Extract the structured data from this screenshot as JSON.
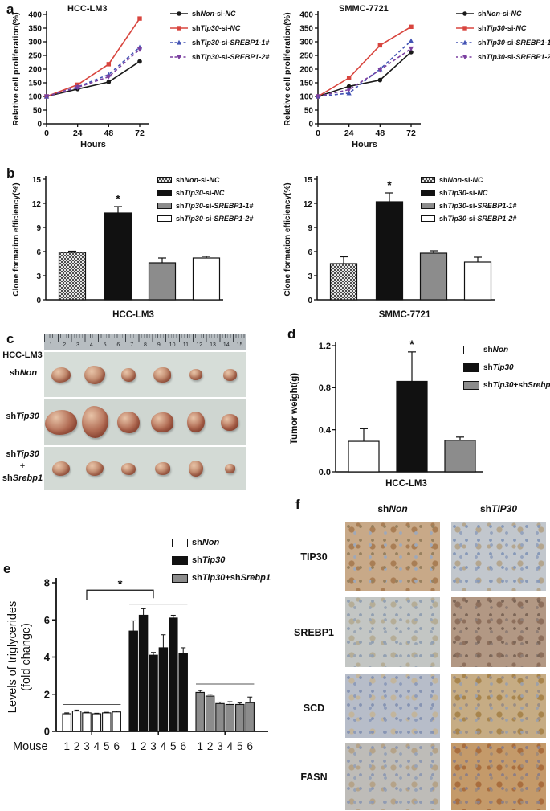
{
  "figure": {
    "panel_labels": {
      "a": "a",
      "b": "b",
      "c": "c",
      "d": "d",
      "e": "e",
      "f": "f"
    }
  },
  "italic_tokens": [
    "SREBP1-1#",
    "SREBP1-2#",
    "SREBP1",
    "Srebp1",
    "Tip30",
    "TIP30",
    "Non",
    "NC"
  ],
  "colors": {
    "black": "#1a1a1a",
    "red": "#d8453e",
    "blue": "#4353b4",
    "purple": "#7b3fa0",
    "gray_bar": "#8c8c8c",
    "axis": "#111111"
  },
  "legends": {
    "proliferation": [
      {
        "label": "shNon-si-NC",
        "color": "#1a1a1a",
        "marker": "circle",
        "dash": false
      },
      {
        "label": "shTip30-si-NC",
        "color": "#d8453e",
        "marker": "square",
        "dash": false
      },
      {
        "label": "shTip30-si-SREBP1-1#",
        "color": "#4353b4",
        "marker": "tri-up",
        "dash": true
      },
      {
        "label": "shTip30-si-SREBP1-2#",
        "color": "#7b3fa0",
        "marker": "tri-down",
        "dash": true
      }
    ],
    "clone": [
      {
        "label": "shNon-si-NC",
        "fill": "checker"
      },
      {
        "label": "shTip30-si-NC",
        "fill": "#111111"
      },
      {
        "label": "shTip30-si-SREBP1-1#",
        "fill": "#8c8c8c"
      },
      {
        "label": "shTip30-si-SREBP1-2#",
        "fill": "#ffffff"
      }
    ],
    "xeno": [
      {
        "label": "shNon",
        "fill": "#ffffff"
      },
      {
        "label": "shTip30",
        "fill": "#111111"
      },
      {
        "label": "shTip30+shSrebp1",
        "fill": "#8c8c8c"
      }
    ]
  },
  "chart_data": [
    {
      "id": "a1",
      "type": "line",
      "title": "HCC-LM3",
      "xlabel": "Hours",
      "ylabel": "Relative cell proliferation(%)",
      "ylim": [
        0,
        400
      ],
      "ytick_step": 50,
      "x": [
        0,
        24,
        48,
        72
      ],
      "series": [
        {
          "name": "shNon-si-NC",
          "values": [
            100,
            127,
            153,
            228
          ]
        },
        {
          "name": "shTip30-si-NC",
          "values": [
            100,
            143,
            218,
            385
          ]
        },
        {
          "name": "shTip30-si-SREBP1-1#",
          "values": [
            100,
            135,
            180,
            280
          ]
        },
        {
          "name": "shTip30-si-SREBP1-2#",
          "values": [
            100,
            133,
            172,
            272
          ]
        }
      ]
    },
    {
      "id": "a2",
      "type": "line",
      "title": "SMMC-7721",
      "xlabel": "Hours",
      "ylabel": "Relative cell proliferation(%)",
      "ylim": [
        0,
        400
      ],
      "ytick_step": 50,
      "x": [
        0,
        24,
        48,
        72
      ],
      "series": [
        {
          "name": "shNon-si-NC",
          "values": [
            100,
            137,
            160,
            262
          ]
        },
        {
          "name": "shTip30-si-NC",
          "values": [
            100,
            168,
            287,
            355
          ]
        },
        {
          "name": "shTip30-si-SREBP1-1#",
          "values": [
            100,
            112,
            200,
            303
          ]
        },
        {
          "name": "shTip30-si-SREBP1-2#",
          "values": [
            100,
            125,
            197,
            275
          ]
        }
      ]
    },
    {
      "id": "b1",
      "type": "bar",
      "xlabel": "HCC-LM3",
      "ylabel": "Clone formation efficiency(%)",
      "ylim": [
        0,
        15
      ],
      "ytick_step": 3,
      "categories": [
        "shNon-si-NC",
        "shTip30-si-NC",
        "shTip30-si-SREBP1-1#",
        "shTip30-si-SREBP1-2#"
      ],
      "values": [
        5.9,
        10.8,
        4.6,
        5.2
      ],
      "errors": [
        0.15,
        0.8,
        0.6,
        0.2
      ],
      "sig_index": 1,
      "sig_symbol": "*"
    },
    {
      "id": "b2",
      "type": "bar",
      "xlabel": "SMMC-7721",
      "ylabel": "Clone formation efficiency(%)",
      "ylim": [
        0,
        15
      ],
      "ytick_step": 3,
      "categories": [
        "shNon-si-NC",
        "shTip30-si-NC",
        "shTip30-si-SREBP1-1#",
        "shTip30-si-SREBP1-2#"
      ],
      "values": [
        4.5,
        12.2,
        5.8,
        4.7
      ],
      "errors": [
        0.85,
        1.1,
        0.3,
        0.6
      ],
      "sig_index": 1,
      "sig_symbol": "*"
    },
    {
      "id": "d",
      "type": "bar",
      "xlabel": "HCC-LM3",
      "ylabel": "Tumor weight(g)",
      "ylim": [
        0,
        1.2
      ],
      "yticks": [
        "0.0",
        "0.4",
        "0.8",
        "1.2"
      ],
      "categories": [
        "shNon",
        "shTip30",
        "shTip30+shSrebp1"
      ],
      "values": [
        0.29,
        0.86,
        0.3
      ],
      "errors": [
        0.12,
        0.28,
        0.03
      ],
      "sig_index": 1,
      "sig_symbol": "*"
    },
    {
      "id": "e",
      "type": "grouped-bar",
      "ylabel_lines": [
        "Levels of triglycerides",
        "(fold change)"
      ],
      "x_axis_label": "Mouse",
      "ylim": [
        0,
        8
      ],
      "ytick_step": 2,
      "mouse_numbers": [
        "1",
        "2",
        "3",
        "4",
        "5",
        "6"
      ],
      "series": [
        {
          "name": "shNon",
          "values": [
            0.95,
            1.1,
            1.0,
            0.95,
            1.0,
            1.05
          ],
          "errors": [
            0.05,
            0.05,
            0.03,
            0.03,
            0.03,
            0.05
          ]
        },
        {
          "name": "shTip30",
          "values": [
            5.4,
            6.25,
            4.1,
            4.5,
            6.1,
            4.2
          ],
          "errors": [
            0.55,
            0.35,
            0.15,
            0.7,
            0.15,
            0.3
          ]
        },
        {
          "name": "shTip30+shSrebp1",
          "values": [
            2.1,
            1.9,
            1.5,
            1.45,
            1.45,
            1.55
          ],
          "errors": [
            0.1,
            0.1,
            0.08,
            0.15,
            0.08,
            0.3
          ]
        }
      ],
      "group_lines_y": [
        1.45,
        6.85,
        2.55
      ],
      "bracket": {
        "from": "shNon",
        "to": "shTip30",
        "y": 7.6,
        "symbol": "*"
      }
    }
  ],
  "panel_c": {
    "cell_line": "HCC-LM3",
    "ruler_numbers": [
      "1",
      "2",
      "3",
      "4",
      "5",
      "6",
      "7",
      "8",
      "9",
      "10",
      "11",
      "12",
      "13",
      "14",
      "15"
    ],
    "strip_bg": [
      "#d6ddd8",
      "#cfd6d1",
      "#d3dad5"
    ],
    "rows": [
      {
        "label": "shNon",
        "tint": "#bd8468",
        "tumor_sizes": [
          [
            24,
            19
          ],
          [
            26,
            23
          ],
          [
            18,
            17
          ],
          [
            22,
            19
          ],
          [
            16,
            14
          ],
          [
            17,
            15
          ]
        ]
      },
      {
        "label": "shTip30",
        "tint": "#b06a52",
        "tumor_sizes": [
          [
            40,
            31
          ],
          [
            33,
            40
          ],
          [
            28,
            27
          ],
          [
            28,
            25
          ],
          [
            22,
            26
          ],
          [
            22,
            21
          ]
        ]
      },
      {
        "label": "shTip30 + shSrebp1",
        "label_lines": [
          "shTip30",
          "+",
          "shSrebp1"
        ],
        "tint": "#bd8468",
        "tumor_sizes": [
          [
            22,
            18
          ],
          [
            22,
            18
          ],
          [
            18,
            15
          ],
          [
            19,
            16
          ],
          [
            18,
            20
          ],
          [
            13,
            12
          ]
        ]
      }
    ]
  },
  "panel_f": {
    "col_headers": [
      "shNon",
      "shTIP30"
    ],
    "rows": [
      {
        "label": "TIP30",
        "cells": [
          {
            "base": "#c8a988",
            "nuclei": "#97805e",
            "nuclei2": "#9fa8b8",
            "blotch": "#a97e55"
          },
          {
            "base": "#c2c7cd",
            "nuclei": "#8799b8",
            "nuclei2": "#95a3bd",
            "blotch": "#b4a68f"
          }
        ]
      },
      {
        "label": "SREBP1",
        "cells": [
          {
            "base": "#c3c6c4",
            "nuclei": "#92a0b2",
            "nuclei2": "#9aa6b4",
            "blotch": "#b5ad97"
          },
          {
            "base": "#b29884",
            "nuclei": "#7c6657",
            "nuclei2": "#8e7d74",
            "blotch": "#8d6f5c"
          }
        ]
      },
      {
        "label": "SCD",
        "cells": [
          {
            "base": "#b7bdc9",
            "nuclei": "#8794b3",
            "nuclei2": "#8e9cba",
            "blotch": "#c2b59d"
          },
          {
            "base": "#c6ac84",
            "nuclei": "#9b8e85",
            "nuclei2": "#9da0a8",
            "blotch": "#a8854d"
          }
        ]
      },
      {
        "label": "FASN",
        "cells": [
          {
            "base": "#bebcb8",
            "nuclei": "#8f9ab2",
            "nuclei2": "#97a2b6",
            "blotch": "#b5a389"
          },
          {
            "base": "#c49a6a",
            "nuclei": "#8d7f86",
            "nuclei2": "#a08a78",
            "blotch": "#a96e3e"
          }
        ]
      }
    ]
  }
}
